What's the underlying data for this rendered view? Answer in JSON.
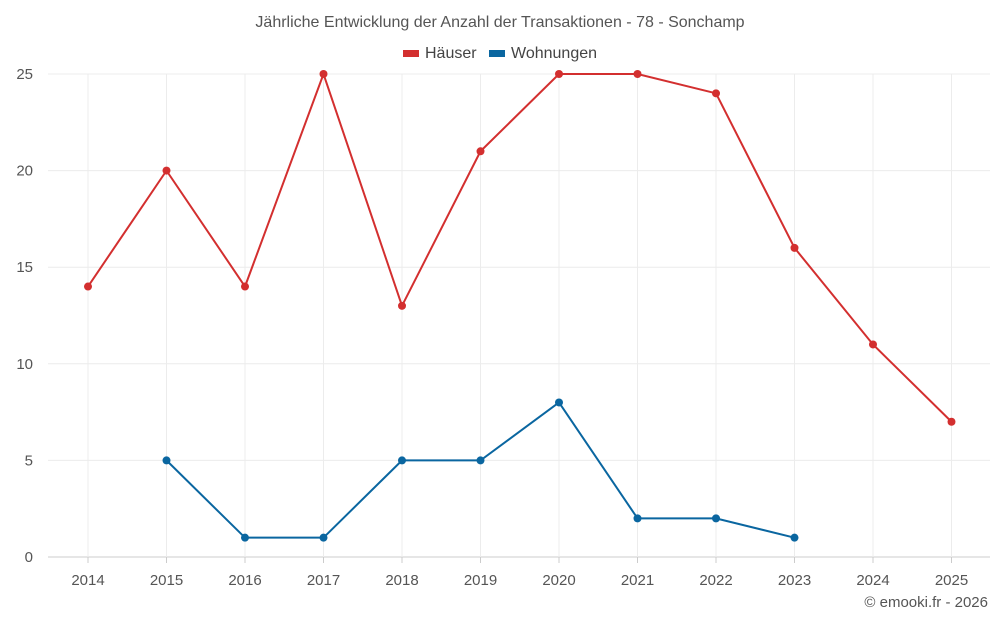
{
  "chart_data": {
    "type": "line",
    "title": "Jährliche Entwicklung der Anzahl der Transaktionen - 78 - Sonchamp",
    "xlabel": "",
    "ylabel": "",
    "categories": [
      "2014",
      "2015",
      "2016",
      "2017",
      "2018",
      "2019",
      "2020",
      "2021",
      "2022",
      "2023",
      "2024",
      "2025"
    ],
    "ylim": [
      0,
      25
    ],
    "yticks": [
      0,
      5,
      10,
      15,
      20,
      25
    ],
    "grid": true,
    "legend_position": "top-center",
    "series": [
      {
        "name": "Häuser",
        "color": "#d32f2f",
        "values": [
          14,
          20,
          14,
          25,
          13,
          21,
          25,
          25,
          24,
          16,
          11,
          7
        ]
      },
      {
        "name": "Wohnungen",
        "color": "#0a66a0",
        "values": [
          null,
          5,
          1,
          1,
          5,
          5,
          8,
          2,
          2,
          1,
          null,
          null
        ]
      }
    ]
  },
  "credit": "© emooki.fr - 2026"
}
